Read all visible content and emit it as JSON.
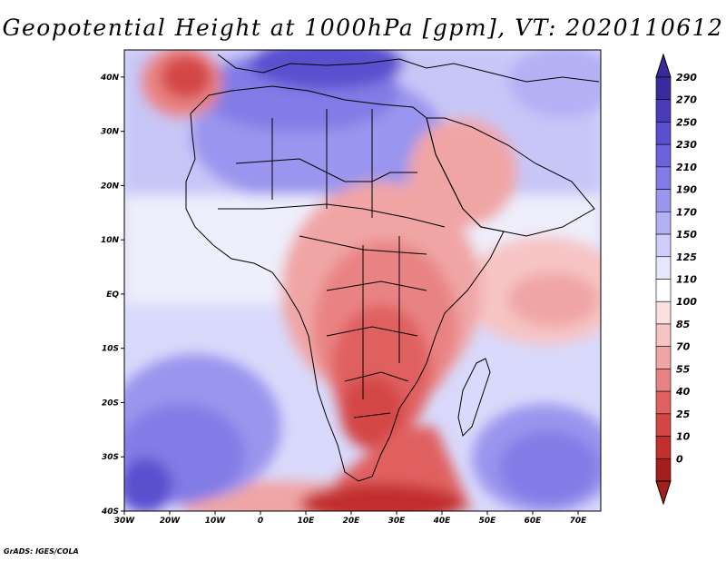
{
  "title": "Geopotential Height at 1000hPa [gpm], VT: 2020110612",
  "footer": "GrADS: IGES/COLA",
  "map": {
    "lon_range": [
      -30,
      75
    ],
    "lat_range": [
      -40,
      45
    ],
    "lon_ticks": [
      "30W",
      "20W",
      "10W",
      "0",
      "10E",
      "20E",
      "30E",
      "40E",
      "50E",
      "60E",
      "70E"
    ],
    "lat_ticks": [
      "40N",
      "30N",
      "20N",
      "10N",
      "EQ",
      "10S",
      "20S",
      "30S",
      "40S"
    ]
  },
  "colorbar": {
    "labels": [
      "290",
      "270",
      "250",
      "230",
      "210",
      "190",
      "170",
      "150",
      "125",
      "110",
      "100",
      "85",
      "70",
      "55",
      "40",
      "25",
      "10",
      "0"
    ],
    "colors": [
      "#3a2b9c",
      "#4a3cb8",
      "#5a4fcf",
      "#6c63dc",
      "#827be6",
      "#9a95ee",
      "#b3b0f5",
      "#cfcdf9",
      "#e6e6fc",
      "#ffffff",
      "#fbe0e0",
      "#f6c4c4",
      "#f0a5a5",
      "#e98383",
      "#e06161",
      "#d44646",
      "#c22f2f",
      "#a51e1e"
    ]
  }
}
